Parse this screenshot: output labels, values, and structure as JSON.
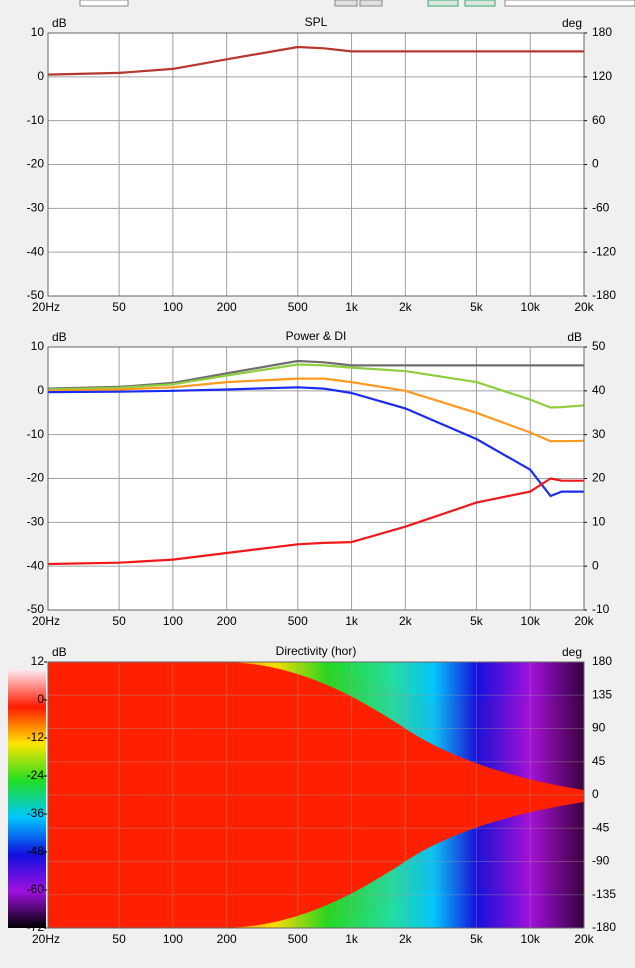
{
  "chart_data": [
    {
      "type": "line",
      "title": "SPL",
      "ylabel": "dB",
      "y2label": "deg",
      "log_x": true,
      "grid": true,
      "xlim": [
        20,
        20000
      ],
      "xticks": [
        {
          "value": 20,
          "label": "20Hz"
        },
        50,
        100,
        200,
        500,
        {
          "value": 1000,
          "label": "1k"
        },
        {
          "value": 2000,
          "label": "2k"
        },
        {
          "value": 5000,
          "label": "5k"
        },
        {
          "value": 10000,
          "label": "10k"
        },
        {
          "value": 20000,
          "label": "20k"
        }
      ],
      "ylim": [
        -50,
        10
      ],
      "yticks": [
        10,
        0,
        -10,
        -20,
        -30,
        -40,
        -50
      ],
      "y2lim": [
        -180,
        180
      ],
      "y2ticks": [
        180,
        120,
        60,
        0,
        -60,
        -120,
        -180
      ],
      "x": [
        20,
        50,
        100,
        200,
        500,
        700,
        1000,
        2000,
        5000,
        10000,
        13000,
        15000,
        20000
      ],
      "series": [
        {
          "color": "#b5372d",
          "values": [
            0.5,
            0.9,
            1.8,
            4,
            6.8,
            6.5,
            5.8,
            5.8,
            5.8,
            5.8,
            5.8,
            5.8,
            5.8
          ]
        }
      ]
    },
    {
      "type": "line",
      "title": "Power & DI",
      "ylabel": "dB",
      "y2label": "dB",
      "log_x": true,
      "grid": true,
      "xlim": [
        20,
        20000
      ],
      "xticks": [
        {
          "value": 20,
          "label": "20Hz"
        },
        50,
        100,
        200,
        500,
        {
          "value": 1000,
          "label": "1k"
        },
        {
          "value": 2000,
          "label": "2k"
        },
        {
          "value": 5000,
          "label": "5k"
        },
        {
          "value": 10000,
          "label": "10k"
        },
        {
          "value": 20000,
          "label": "20k"
        }
      ],
      "ylim": [
        -50,
        10
      ],
      "yticks": [
        10,
        0,
        -10,
        -20,
        -30,
        -40,
        -50
      ],
      "y2lim": [
        -10,
        50
      ],
      "y2ticks": [
        50,
        40,
        30,
        20,
        10,
        0,
        -10
      ],
      "x": [
        20,
        50,
        100,
        200,
        500,
        700,
        1000,
        2000,
        5000,
        10000,
        13000,
        15000,
        20000
      ],
      "series": [
        {
          "color": "#6e6e6e",
          "values": [
            0.5,
            0.9,
            1.8,
            4,
            6.8,
            6.5,
            5.8,
            5.8,
            5.8,
            5.8,
            5.8,
            5.8,
            5.8
          ]
        },
        {
          "color": "#8fce3f",
          "values": [
            0.3,
            0.7,
            1.5,
            3.5,
            6,
            5.8,
            5.3,
            4.5,
            2,
            -2,
            -3.8,
            -3.7,
            -3.3
          ]
        },
        {
          "color": "#ff9a1f",
          "values": [
            0,
            0.3,
            0.8,
            2,
            2.8,
            2.8,
            2,
            0,
            -5,
            -9.5,
            -11.5,
            -11.5,
            -11.4
          ]
        },
        {
          "color": "#1a2cf0",
          "values": [
            -0.3,
            -0.2,
            0,
            0.3,
            0.8,
            0.5,
            -0.5,
            -4,
            -11,
            -18,
            -24,
            -23,
            -23
          ]
        },
        {
          "color": "#f01818",
          "axis": "y2",
          "values": [
            0.5,
            0.8,
            1.5,
            3,
            5,
            5.3,
            5.5,
            9,
            14.5,
            17,
            20,
            19.5,
            19.5
          ]
        }
      ]
    },
    {
      "type": "heatmap",
      "title": "Directivity (hor)",
      "ylabel": "dB",
      "y2label": "deg",
      "log_x": true,
      "grid": true,
      "xlim": [
        20,
        20000
      ],
      "xticks": [
        {
          "value": 20,
          "label": "20Hz"
        },
        50,
        100,
        200,
        500,
        {
          "value": 1000,
          "label": "1k"
        },
        {
          "value": 2000,
          "label": "2k"
        },
        {
          "value": 5000,
          "label": "5k"
        },
        {
          "value": 10000,
          "label": "10k"
        },
        {
          "value": 20000,
          "label": "20k"
        }
      ],
      "ylim": [
        -72,
        12
      ],
      "yticks": [
        12,
        0,
        -12,
        -24,
        -36,
        -48,
        -60,
        -72
      ],
      "y2lim": [
        -180,
        180
      ],
      "y2ticks": [
        180,
        135,
        90,
        45,
        0,
        -45,
        -90,
        -135,
        -180
      ],
      "colormap": [
        "#ffe8f0",
        "#ff1a00",
        "#ffe600",
        "#22dd22",
        "#00c8ff",
        "#1010e0",
        "#a010e0",
        "#000000"
      ]
    }
  ]
}
